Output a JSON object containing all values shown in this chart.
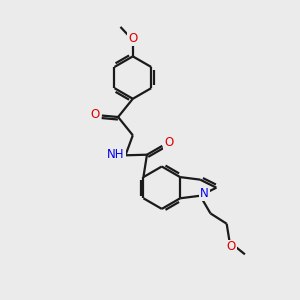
{
  "background_color": "#ebebeb",
  "bond_color": "#1a1a1a",
  "N_color": "#0000ee",
  "O_color": "#dd0000",
  "lw": 1.6,
  "figsize": [
    3.0,
    3.0
  ],
  "dpi": 100,
  "xlim": [
    0,
    10
  ],
  "ylim": [
    0,
    10
  ]
}
